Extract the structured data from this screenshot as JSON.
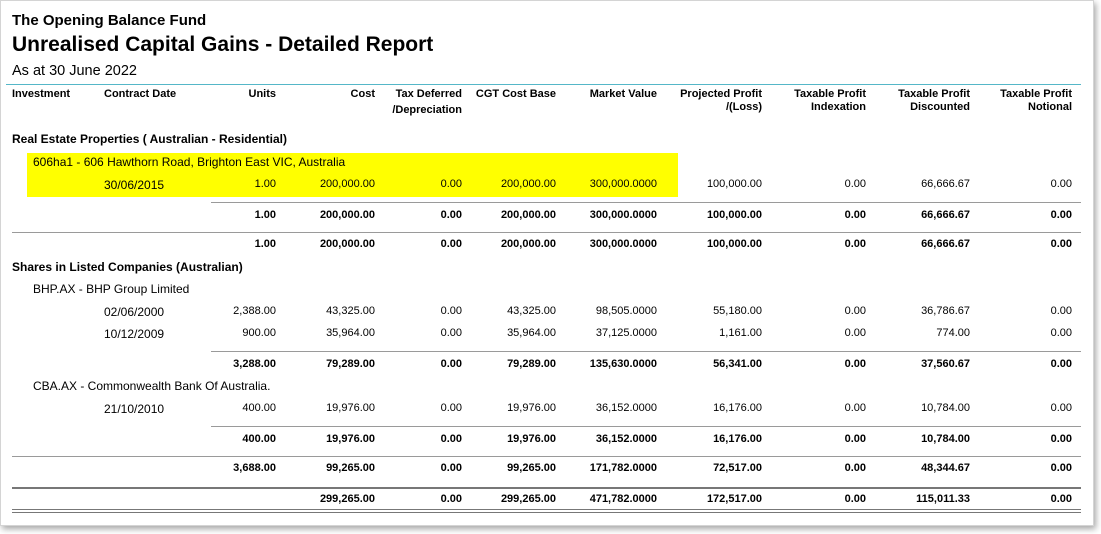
{
  "report": {
    "fund_name": "The Opening Balance Fund",
    "title": "Unrealised Capital Gains - Detailed Report",
    "as_at": "As at 30 June 2022"
  },
  "colors": {
    "highlight": "#ffff00",
    "header_rule": "#55b7c8"
  },
  "columns": {
    "investment": "Investment",
    "contract_date": "Contract Date",
    "units": "Units",
    "cost": "Cost",
    "tax_deferred_1": "Tax Deferred",
    "tax_deferred_2": "/Depreciation",
    "cgt_cost_base": "CGT Cost Base",
    "market_value": "Market Value",
    "projected_profit_1": "Projected Profit",
    "projected_profit_2": "/(Loss)",
    "indexation_1": "Taxable Profit",
    "indexation_2": "Indexation",
    "discounted_1": "Taxable Profit",
    "discounted_2": "Discounted",
    "notional_1": "Taxable Profit",
    "notional_2": "Notional"
  },
  "real_estate": {
    "heading": "Real Estate Properties ( Australian - Residential)",
    "property": "606ha1 - 606 Hawthorn Road, Brighton East VIC, Australia",
    "row": {
      "date": "30/06/2015",
      "units": "1.00",
      "cost": "200,000.00",
      "tax_def": "0.00",
      "cgt": "200,000.00",
      "mv": "300,000.0000",
      "proj": "100,000.00",
      "idx": "0.00",
      "disc": "66,666.67",
      "notional": "0.00"
    },
    "subtotal": {
      "units": "1.00",
      "cost": "200,000.00",
      "tax_def": "0.00",
      "cgt": "200,000.00",
      "mv": "300,000.0000",
      "proj": "100,000.00",
      "idx": "0.00",
      "disc": "66,666.67",
      "notional": "0.00"
    },
    "total": {
      "units": "1.00",
      "cost": "200,000.00",
      "tax_def": "0.00",
      "cgt": "200,000.00",
      "mv": "300,000.0000",
      "proj": "100,000.00",
      "idx": "0.00",
      "disc": "66,666.67",
      "notional": "0.00"
    }
  },
  "shares": {
    "heading": "Shares in Listed Companies (Australian)",
    "bhp": {
      "name": "BHP.AX - BHP Group Limited",
      "rows": [
        {
          "date": "02/06/2000",
          "units": "2,388.00",
          "cost": "43,325.00",
          "tax_def": "0.00",
          "cgt": "43,325.00",
          "mv": "98,505.0000",
          "proj": "55,180.00",
          "idx": "0.00",
          "disc": "36,786.67",
          "notional": "0.00"
        },
        {
          "date": "10/12/2009",
          "units": "900.00",
          "cost": "35,964.00",
          "tax_def": "0.00",
          "cgt": "35,964.00",
          "mv": "37,125.0000",
          "proj": "1,161.00",
          "idx": "0.00",
          "disc": "774.00",
          "notional": "0.00"
        }
      ],
      "subtotal": {
        "units": "3,288.00",
        "cost": "79,289.00",
        "tax_def": "0.00",
        "cgt": "79,289.00",
        "mv": "135,630.0000",
        "proj": "56,341.00",
        "idx": "0.00",
        "disc": "37,560.67",
        "notional": "0.00"
      }
    },
    "cba": {
      "name": "CBA.AX - Commonwealth Bank Of Australia.",
      "rows": [
        {
          "date": "21/10/2010",
          "units": "400.00",
          "cost": "19,976.00",
          "tax_def": "0.00",
          "cgt": "19,976.00",
          "mv": "36,152.0000",
          "proj": "16,176.00",
          "idx": "0.00",
          "disc": "10,784.00",
          "notional": "0.00"
        }
      ],
      "subtotal": {
        "units": "400.00",
        "cost": "19,976.00",
        "tax_def": "0.00",
        "cgt": "19,976.00",
        "mv": "36,152.0000",
        "proj": "16,176.00",
        "idx": "0.00",
        "disc": "10,784.00",
        "notional": "0.00"
      }
    },
    "total": {
      "units": "3,688.00",
      "cost": "99,265.00",
      "tax_def": "0.00",
      "cgt": "99,265.00",
      "mv": "171,782.0000",
      "proj": "72,517.00",
      "idx": "0.00",
      "disc": "48,344.67",
      "notional": "0.00"
    }
  },
  "grand_total": {
    "cost": "299,265.00",
    "tax_def": "0.00",
    "cgt": "299,265.00",
    "mv": "471,782.0000",
    "proj": "172,517.00",
    "idx": "0.00",
    "disc": "115,011.33",
    "notional": "0.00"
  }
}
